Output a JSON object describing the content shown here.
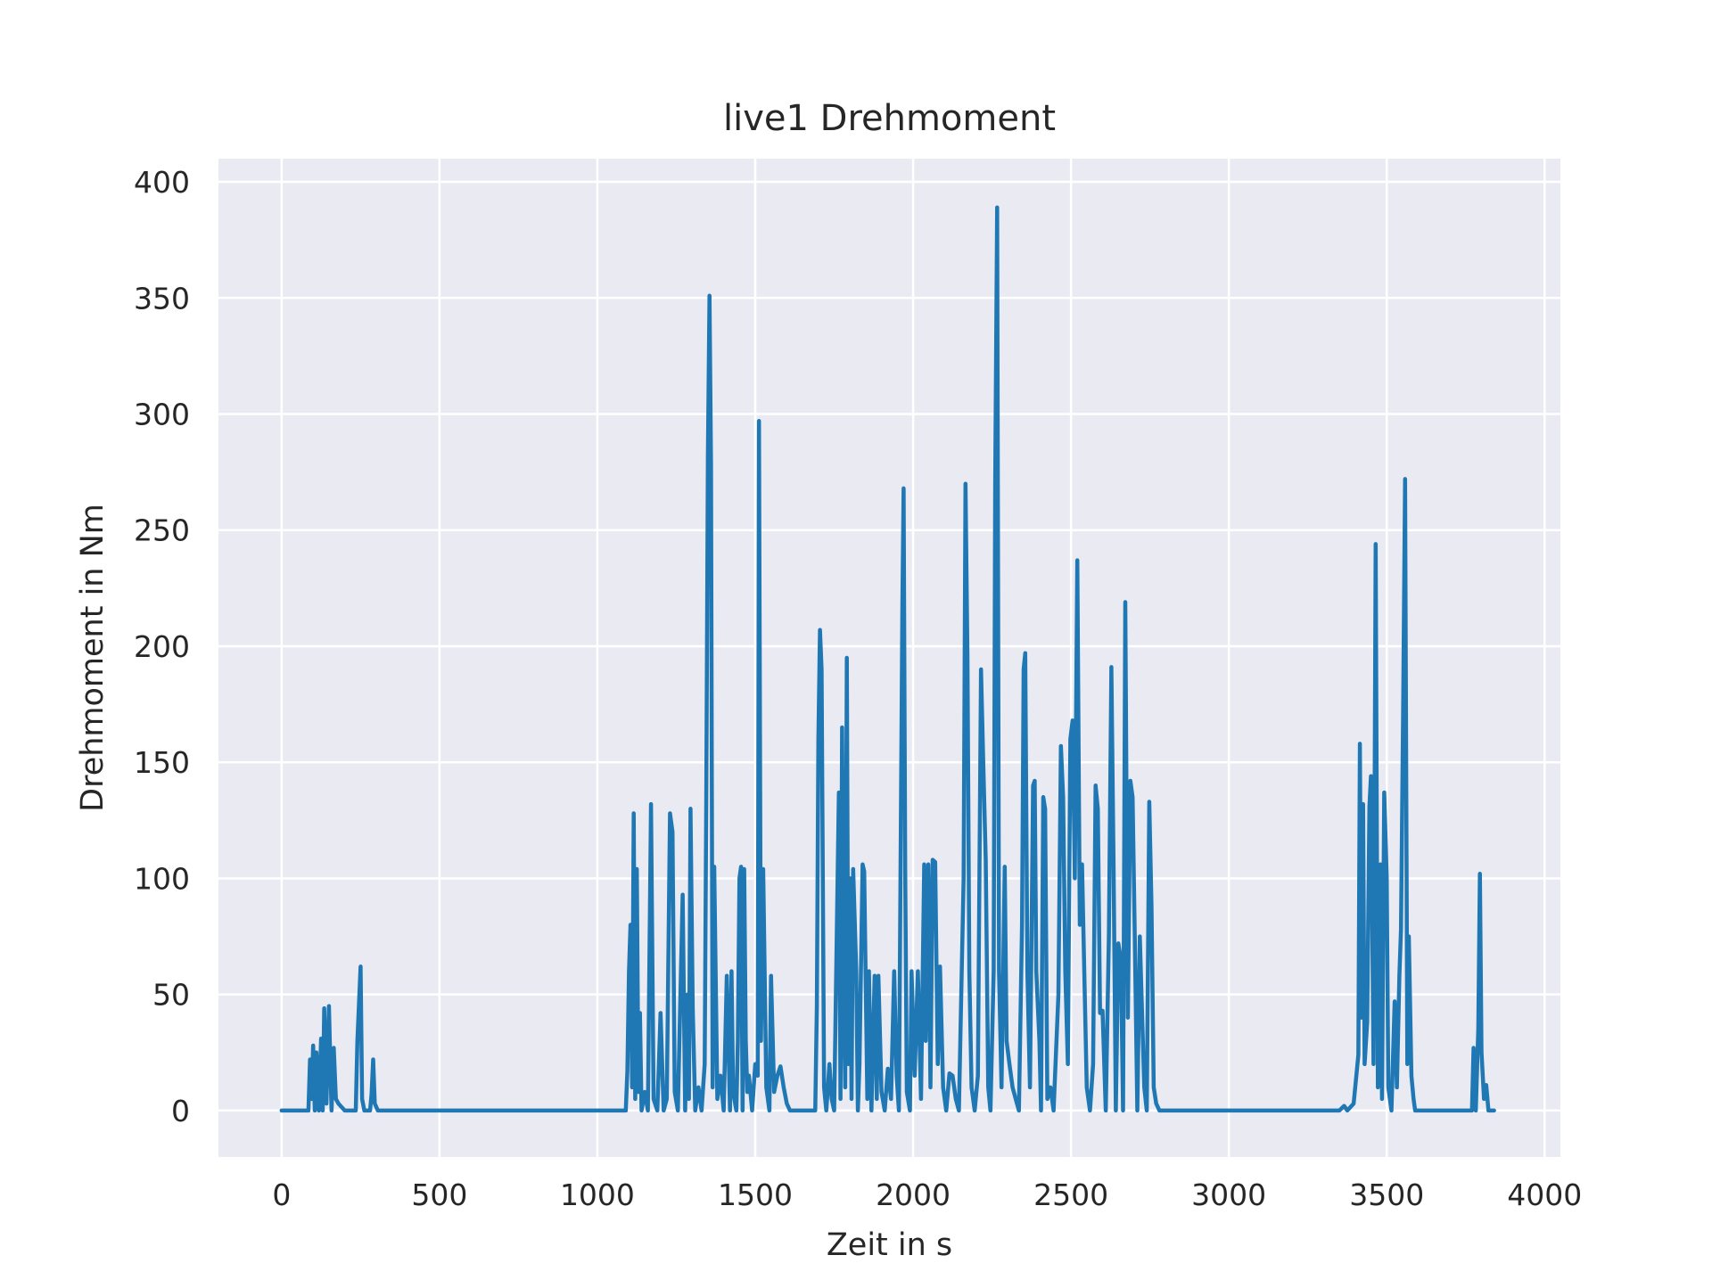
{
  "chart_data": {
    "type": "line",
    "title": "live1 Drehmoment",
    "xlabel": "Zeit in s",
    "ylabel": "Drehmoment in Nm",
    "xlim": [
      -200,
      4050
    ],
    "ylim": [
      -20,
      410
    ],
    "xticks": [
      0,
      500,
      1000,
      1500,
      2000,
      2500,
      3000,
      3500,
      4000
    ],
    "yticks": [
      0,
      50,
      100,
      150,
      200,
      250,
      300,
      350,
      400
    ],
    "grid": true,
    "legend": "none",
    "colors": {
      "background": "#eaeaf2",
      "grid": "#ffffff",
      "line": "#1f77b4"
    },
    "series": [
      {
        "points": [
          [
            0,
            0
          ],
          [
            85,
            0
          ],
          [
            90,
            22
          ],
          [
            95,
            5
          ],
          [
            100,
            28
          ],
          [
            105,
            0
          ],
          [
            110,
            25
          ],
          [
            118,
            0
          ],
          [
            125,
            31
          ],
          [
            130,
            0
          ],
          [
            135,
            44
          ],
          [
            142,
            3
          ],
          [
            150,
            45
          ],
          [
            158,
            0
          ],
          [
            165,
            27
          ],
          [
            172,
            5
          ],
          [
            180,
            3
          ],
          [
            200,
            0
          ],
          [
            235,
            0
          ],
          [
            240,
            30
          ],
          [
            245,
            46
          ],
          [
            250,
            62
          ],
          [
            255,
            5
          ],
          [
            262,
            0
          ],
          [
            280,
            0
          ],
          [
            285,
            7
          ],
          [
            290,
            22
          ],
          [
            295,
            3
          ],
          [
            305,
            0
          ],
          [
            1090,
            0
          ],
          [
            1095,
            17
          ],
          [
            1100,
            60
          ],
          [
            1105,
            80
          ],
          [
            1110,
            10
          ],
          [
            1115,
            128
          ],
          [
            1120,
            5
          ],
          [
            1125,
            104
          ],
          [
            1130,
            8
          ],
          [
            1135,
            42
          ],
          [
            1140,
            0
          ],
          [
            1150,
            8
          ],
          [
            1160,
            0
          ],
          [
            1170,
            132
          ],
          [
            1178,
            5
          ],
          [
            1190,
            0
          ],
          [
            1200,
            42
          ],
          [
            1210,
            0
          ],
          [
            1220,
            5
          ],
          [
            1230,
            128
          ],
          [
            1238,
            120
          ],
          [
            1245,
            8
          ],
          [
            1255,
            0
          ],
          [
            1270,
            93
          ],
          [
            1278,
            0
          ],
          [
            1285,
            50
          ],
          [
            1290,
            5
          ],
          [
            1295,
            130
          ],
          [
            1302,
            44
          ],
          [
            1310,
            0
          ],
          [
            1320,
            10
          ],
          [
            1330,
            0
          ],
          [
            1340,
            20
          ],
          [
            1345,
            136
          ],
          [
            1350,
            282
          ],
          [
            1355,
            351
          ],
          [
            1360,
            278
          ],
          [
            1365,
            10
          ],
          [
            1370,
            105
          ],
          [
            1380,
            5
          ],
          [
            1390,
            15
          ],
          [
            1400,
            0
          ],
          [
            1410,
            58
          ],
          [
            1420,
            0
          ],
          [
            1425,
            60
          ],
          [
            1430,
            8
          ],
          [
            1440,
            0
          ],
          [
            1445,
            30
          ],
          [
            1450,
            100
          ],
          [
            1455,
            105
          ],
          [
            1460,
            0
          ],
          [
            1465,
            104
          ],
          [
            1470,
            30
          ],
          [
            1475,
            8
          ],
          [
            1480,
            15
          ],
          [
            1490,
            0
          ],
          [
            1500,
            20
          ],
          [
            1508,
            15
          ],
          [
            1512,
            297
          ],
          [
            1518,
            30
          ],
          [
            1525,
            104
          ],
          [
            1535,
            10
          ],
          [
            1545,
            0
          ],
          [
            1550,
            58
          ],
          [
            1560,
            8
          ],
          [
            1570,
            15
          ],
          [
            1580,
            19
          ],
          [
            1590,
            10
          ],
          [
            1600,
            3
          ],
          [
            1610,
            0
          ],
          [
            1690,
            0
          ],
          [
            1695,
            45
          ],
          [
            1700,
            160
          ],
          [
            1705,
            207
          ],
          [
            1710,
            190
          ],
          [
            1718,
            10
          ],
          [
            1725,
            0
          ],
          [
            1735,
            20
          ],
          [
            1742,
            5
          ],
          [
            1750,
            0
          ],
          [
            1765,
            137
          ],
          [
            1770,
            5
          ],
          [
            1775,
            165
          ],
          [
            1780,
            50
          ],
          [
            1785,
            10
          ],
          [
            1790,
            195
          ],
          [
            1795,
            20
          ],
          [
            1800,
            100
          ],
          [
            1805,
            5
          ],
          [
            1810,
            104
          ],
          [
            1820,
            60
          ],
          [
            1825,
            0
          ],
          [
            1830,
            20
          ],
          [
            1840,
            106
          ],
          [
            1845,
            103
          ],
          [
            1855,
            5
          ],
          [
            1860,
            60
          ],
          [
            1868,
            0
          ],
          [
            1878,
            58
          ],
          [
            1885,
            5
          ],
          [
            1890,
            58
          ],
          [
            1900,
            8
          ],
          [
            1910,
            0
          ],
          [
            1920,
            18
          ],
          [
            1930,
            5
          ],
          [
            1940,
            60
          ],
          [
            1948,
            15
          ],
          [
            1955,
            0
          ],
          [
            1962,
            140
          ],
          [
            1966,
            217
          ],
          [
            1970,
            268
          ],
          [
            1975,
            102
          ],
          [
            1980,
            8
          ],
          [
            1990,
            0
          ],
          [
            1995,
            60
          ],
          [
            2005,
            15
          ],
          [
            2015,
            60
          ],
          [
            2025,
            5
          ],
          [
            2035,
            106
          ],
          [
            2040,
            30
          ],
          [
            2048,
            106
          ],
          [
            2055,
            10
          ],
          [
            2062,
            108
          ],
          [
            2070,
            107
          ],
          [
            2078,
            20
          ],
          [
            2085,
            62
          ],
          [
            2095,
            10
          ],
          [
            2105,
            0
          ],
          [
            2115,
            16
          ],
          [
            2125,
            15
          ],
          [
            2135,
            5
          ],
          [
            2145,
            0
          ],
          [
            2160,
            100
          ],
          [
            2166,
            270
          ],
          [
            2172,
            195
          ],
          [
            2178,
            60
          ],
          [
            2185,
            10
          ],
          [
            2195,
            0
          ],
          [
            2205,
            15
          ],
          [
            2215,
            190
          ],
          [
            2222,
            150
          ],
          [
            2230,
            108
          ],
          [
            2238,
            10
          ],
          [
            2245,
            0
          ],
          [
            2255,
            60
          ],
          [
            2260,
            270
          ],
          [
            2266,
            389
          ],
          [
            2272,
            60
          ],
          [
            2280,
            10
          ],
          [
            2290,
            105
          ],
          [
            2296,
            30
          ],
          [
            2305,
            20
          ],
          [
            2315,
            10
          ],
          [
            2325,
            5
          ],
          [
            2335,
            0
          ],
          [
            2345,
            80
          ],
          [
            2350,
            190
          ],
          [
            2355,
            197
          ],
          [
            2362,
            60
          ],
          [
            2370,
            10
          ],
          [
            2380,
            140
          ],
          [
            2385,
            142
          ],
          [
            2390,
            60
          ],
          [
            2400,
            30
          ],
          [
            2405,
            0
          ],
          [
            2412,
            135
          ],
          [
            2418,
            130
          ],
          [
            2425,
            5
          ],
          [
            2435,
            10
          ],
          [
            2445,
            0
          ],
          [
            2460,
            50
          ],
          [
            2468,
            157
          ],
          [
            2475,
            135
          ],
          [
            2482,
            60
          ],
          [
            2490,
            20
          ],
          [
            2498,
            160
          ],
          [
            2505,
            168
          ],
          [
            2512,
            100
          ],
          [
            2520,
            237
          ],
          [
            2528,
            80
          ],
          [
            2535,
            106
          ],
          [
            2542,
            60
          ],
          [
            2550,
            10
          ],
          [
            2560,
            0
          ],
          [
            2570,
            20
          ],
          [
            2578,
            140
          ],
          [
            2585,
            130
          ],
          [
            2592,
            42
          ],
          [
            2600,
            43
          ],
          [
            2610,
            0
          ],
          [
            2620,
            75
          ],
          [
            2628,
            191
          ],
          [
            2635,
            104
          ],
          [
            2642,
            0
          ],
          [
            2650,
            72
          ],
          [
            2658,
            65
          ],
          [
            2665,
            0
          ],
          [
            2672,
            219
          ],
          [
            2680,
            40
          ],
          [
            2688,
            142
          ],
          [
            2695,
            135
          ],
          [
            2702,
            76
          ],
          [
            2710,
            0
          ],
          [
            2718,
            75
          ],
          [
            2725,
            42
          ],
          [
            2732,
            10
          ],
          [
            2740,
            0
          ],
          [
            2748,
            133
          ],
          [
            2755,
            88
          ],
          [
            2762,
            10
          ],
          [
            2770,
            3
          ],
          [
            2780,
            0
          ],
          [
            3350,
            0
          ],
          [
            3365,
            2
          ],
          [
            3375,
            0
          ],
          [
            3395,
            3
          ],
          [
            3410,
            24
          ],
          [
            3415,
            158
          ],
          [
            3420,
            40
          ],
          [
            3425,
            132
          ],
          [
            3430,
            20
          ],
          [
            3438,
            38
          ],
          [
            3445,
            131
          ],
          [
            3450,
            144
          ],
          [
            3458,
            20
          ],
          [
            3465,
            244
          ],
          [
            3472,
            10
          ],
          [
            3480,
            106
          ],
          [
            3485,
            5
          ],
          [
            3492,
            137
          ],
          [
            3500,
            100
          ],
          [
            3505,
            10
          ],
          [
            3515,
            0
          ],
          [
            3525,
            47
          ],
          [
            3532,
            10
          ],
          [
            3540,
            58
          ],
          [
            3545,
            78
          ],
          [
            3552,
            172
          ],
          [
            3558,
            272
          ],
          [
            3565,
            20
          ],
          [
            3570,
            75
          ],
          [
            3578,
            15
          ],
          [
            3585,
            5
          ],
          [
            3590,
            0
          ],
          [
            3770,
            0
          ],
          [
            3775,
            27
          ],
          [
            3782,
            0
          ],
          [
            3790,
            35
          ],
          [
            3795,
            102
          ],
          [
            3800,
            25
          ],
          [
            3808,
            5
          ],
          [
            3815,
            11
          ],
          [
            3822,
            0
          ],
          [
            3840,
            0
          ]
        ]
      }
    ]
  }
}
